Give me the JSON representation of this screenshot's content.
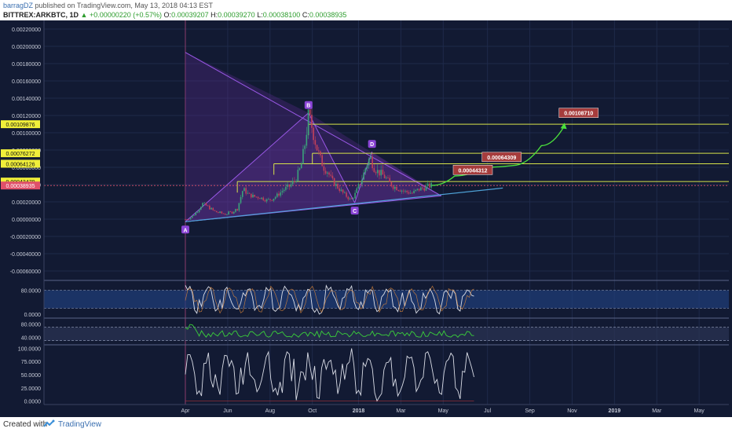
{
  "header": {
    "author": "barragDZ",
    "published": " published on TradingView.com, May 13, 2018 04:13 EST",
    "symbol": "BITTREX:ARKBTC, 1D",
    "change_arrow": "▲",
    "change": "+0.00000220 (+0.57%)",
    "open_label": "O:",
    "open": "0.00039207",
    "high_label": "H:",
    "high": "0.00039270",
    "low_label": "L:",
    "low": "0.00038100",
    "close_label": "C:",
    "close": "0.00038935"
  },
  "footer": {
    "created": "Created with",
    "brand": "TradingView"
  },
  "colors": {
    "background": "#121a33",
    "up": "#3aa37a",
    "down": "#c2405a",
    "pattern": "#9b59e8",
    "level": "#d7e34a",
    "target": "#4adf3c",
    "trend": "#4fa3d8"
  },
  "chart_data": {
    "type": "candlestick",
    "x_ticks": [
      "Apr",
      "Jun",
      "Aug",
      "Oct",
      "2018",
      "Mar",
      "May",
      "Jul",
      "Sep",
      "Nov",
      "2019",
      "Mar",
      "May"
    ],
    "y_ticks": [
      "0.00220000",
      "0.00200000",
      "0.00180000",
      "0.00160000",
      "0.00140000",
      "0.00120000",
      "0.00100000",
      "0.00080000",
      "0.00060000",
      "0.00040000",
      "0.00020000",
      "0.00000000",
      "-0.00020000",
      "-0.00040000",
      "-0.00060000"
    ],
    "ylim": [
      -0.0007,
      0.0023
    ],
    "price_points": [
      {
        "t": 0,
        "v": 0.0
      },
      {
        "t": 3,
        "v": 2e-05
      },
      {
        "t": 6,
        "v": 9e-05
      },
      {
        "t": 9,
        "v": 0.00018
      },
      {
        "t": 12,
        "v": 0.00014
      },
      {
        "t": 15,
        "v": 9e-05
      },
      {
        "t": 18,
        "v": 7e-05
      },
      {
        "t": 21,
        "v": 6e-05
      },
      {
        "t": 24,
        "v": 8e-05
      },
      {
        "t": 27,
        "v": 0.00012
      },
      {
        "t": 30,
        "v": 0.00035
      },
      {
        "t": 33,
        "v": 0.00028
      },
      {
        "t": 36,
        "v": 0.00026
      },
      {
        "t": 39,
        "v": 0.00025
      },
      {
        "t": 42,
        "v": 0.00022
      },
      {
        "t": 45,
        "v": 0.00023
      },
      {
        "t": 48,
        "v": 0.00028
      },
      {
        "t": 51,
        "v": 0.00034
      },
      {
        "t": 54,
        "v": 0.00038
      },
      {
        "t": 57,
        "v": 0.00045
      },
      {
        "t": 60,
        "v": 0.0006
      },
      {
        "t": 62,
        "v": 0.00085
      },
      {
        "t": 64,
        "v": 0.0012
      },
      {
        "t": 66,
        "v": 0.00105
      },
      {
        "t": 68,
        "v": 0.00085
      },
      {
        "t": 70,
        "v": 0.0007
      },
      {
        "t": 72,
        "v": 0.0006
      },
      {
        "t": 74,
        "v": 0.00055
      },
      {
        "t": 76,
        "v": 0.00045
      },
      {
        "t": 78,
        "v": 0.0004
      },
      {
        "t": 80,
        "v": 0.00035
      },
      {
        "t": 82,
        "v": 0.0003
      },
      {
        "t": 84,
        "v": 0.00026
      },
      {
        "t": 86,
        "v": 0.00022
      },
      {
        "t": 88,
        "v": 0.00028
      },
      {
        "t": 90,
        "v": 0.00038
      },
      {
        "t": 92,
        "v": 0.00048
      },
      {
        "t": 94,
        "v": 0.00062
      },
      {
        "t": 96,
        "v": 0.00072
      },
      {
        "t": 98,
        "v": 0.0006
      },
      {
        "t": 100,
        "v": 0.00055
      },
      {
        "t": 102,
        "v": 0.00052
      },
      {
        "t": 104,
        "v": 0.00048
      },
      {
        "t": 106,
        "v": 0.00042
      },
      {
        "t": 108,
        "v": 0.00038
      },
      {
        "t": 110,
        "v": 0.00036
      },
      {
        "t": 112,
        "v": 0.00034
      },
      {
        "t": 114,
        "v": 0.00032
      },
      {
        "t": 116,
        "v": 0.00031
      },
      {
        "t": 118,
        "v": 0.0003
      },
      {
        "t": 120,
        "v": 0.00033
      },
      {
        "t": 122,
        "v": 0.00035
      },
      {
        "t": 124,
        "v": 0.00036
      },
      {
        "t": 126,
        "v": 0.00038
      },
      {
        "t": 128,
        "v": 0.00039
      }
    ],
    "levels": [
      {
        "value": 0.00109876,
        "label": "0.00109876",
        "start_t": 64
      },
      {
        "value": 0.00076272,
        "label": "0.00076272",
        "start_t": 66
      },
      {
        "value": 0.00064126,
        "label": "0.00064126",
        "start_t": 46
      },
      {
        "value": 0.00043479,
        "label": "0.00043479",
        "start_t": 27
      }
    ],
    "last_price": {
      "value": 0.00038935,
      "label": "0.00038935"
    },
    "pattern_points": [
      {
        "name": "A",
        "t": 0,
        "v": -3e-05,
        "pos": "below"
      },
      {
        "name": "B",
        "t": 64,
        "v": 0.00123,
        "pos": "above"
      },
      {
        "name": "C",
        "t": 88,
        "v": 0.00019,
        "pos": "below"
      },
      {
        "name": "D",
        "t": 97,
        "v": 0.00078,
        "pos": "above"
      }
    ],
    "triangle_top_v": 0.00193,
    "pattern_apex": {
      "t": 133,
      "v": 0.00027
    },
    "trend_line": {
      "t0": 0,
      "v0": -3e-05,
      "t1": 165,
      "v1": 0.00036
    },
    "projection": [
      {
        "t": 128,
        "v": 0.00039
      },
      {
        "t": 140,
        "v": 0.0005
      },
      {
        "t": 155,
        "v": 0.0006
      },
      {
        "t": 170,
        "v": 0.00062
      },
      {
        "t": 185,
        "v": 0.00085
      },
      {
        "t": 197,
        "v": 0.00108
      }
    ],
    "targets": [
      {
        "label": "0.00044312",
        "t": 140,
        "v": 0.00057
      },
      {
        "label": "0.00064309",
        "t": 155,
        "v": 0.00072
      },
      {
        "label": "0.00108710",
        "t": 195,
        "v": 0.00123
      }
    ],
    "stoch_rsi": {
      "ticks": [
        "80.0000",
        "0.0000"
      ],
      "upper": 80,
      "lower": 20,
      "ylim": [
        -10,
        110
      ]
    },
    "rsi": {
      "ticks": [
        "80.0000",
        "40.0000"
      ],
      "upper": 70,
      "lower": 30,
      "ylim": [
        20,
        95
      ]
    },
    "stoch": {
      "ticks": [
        "100.0000",
        "75.0000",
        "50.0000",
        "25.0000",
        "0.0000"
      ],
      "ylim": [
        -5,
        105
      ]
    },
    "t_max": 250
  }
}
